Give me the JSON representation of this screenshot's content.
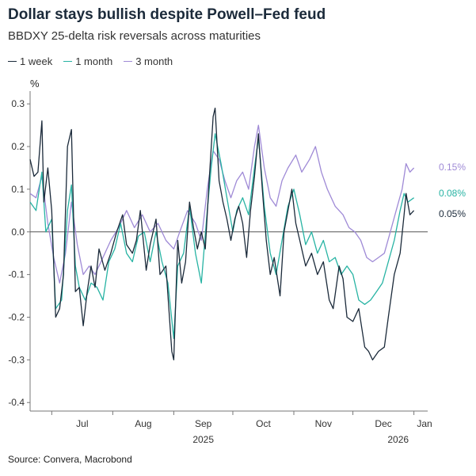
{
  "title": "Dollar stays bullish despite Powell–Fed feud",
  "subtitle": "BBDXY 25-delta risk reversals across maturities",
  "source": "Source: Convera, Macrobond",
  "colors": {
    "1 week": "#1b2a3a",
    "1 month": "#27b3a3",
    "3 month": "#9f8ad6",
    "zero_line": "#555555"
  },
  "chart_data": {
    "type": "line",
    "ylabel": "%",
    "xlabel": "",
    "ylim": [
      -0.42,
      0.33
    ],
    "yticks": [
      "0.3",
      "0.2",
      "0.1",
      "0.0",
      "-0.1",
      "-0.2",
      "-0.3",
      "-0.4"
    ],
    "ytick_values": [
      0.3,
      0.2,
      0.1,
      0.0,
      -0.1,
      -0.2,
      -0.3,
      -0.4
    ],
    "x_range": [
      "2025-06-20",
      "2026-01-08"
    ],
    "month_ticks": [
      {
        "label": "Jul",
        "date": "2025-07-01"
      },
      {
        "label": "Aug",
        "date": "2025-08-01"
      },
      {
        "label": "Sep",
        "date": "2025-09-01"
      },
      {
        "label": "Oct",
        "date": "2025-10-01"
      },
      {
        "label": "Nov",
        "date": "2025-11-01"
      },
      {
        "label": "Dec",
        "date": "2025-12-01"
      },
      {
        "label": "Jan",
        "date": "2026-01-01"
      }
    ],
    "year_labels": [
      {
        "label": "2025",
        "date": "2025-09-16"
      },
      {
        "label": "2026",
        "date": "2025-12-24"
      }
    ],
    "grid": false,
    "legend": "top-left",
    "end_labels": [
      "0.15%",
      "0.08%",
      "0.05%"
    ],
    "series": [
      {
        "name": "1 week",
        "data": [
          [
            "2025-06-20",
            0.17
          ],
          [
            "2025-06-22",
            0.13
          ],
          [
            "2025-06-24",
            0.14
          ],
          [
            "2025-06-26",
            0.26
          ],
          [
            "2025-06-27",
            0.07
          ],
          [
            "2025-06-29",
            0.15
          ],
          [
            "2025-07-01",
            0.05
          ],
          [
            "2025-07-03",
            -0.2
          ],
          [
            "2025-07-05",
            -0.18
          ],
          [
            "2025-07-07",
            -0.1
          ],
          [
            "2025-07-09",
            0.2
          ],
          [
            "2025-07-11",
            0.24
          ],
          [
            "2025-07-13",
            -0.14
          ],
          [
            "2025-07-15",
            -0.13
          ],
          [
            "2025-07-17",
            -0.22
          ],
          [
            "2025-07-19",
            -0.14
          ],
          [
            "2025-07-21",
            -0.08
          ],
          [
            "2025-07-23",
            -0.13
          ],
          [
            "2025-07-25",
            -0.04
          ],
          [
            "2025-07-28",
            -0.09
          ],
          [
            "2025-07-31",
            -0.05
          ],
          [
            "2025-08-03",
            0.0
          ],
          [
            "2025-08-06",
            0.04
          ],
          [
            "2025-08-08",
            -0.03
          ],
          [
            "2025-08-11",
            -0.05
          ],
          [
            "2025-08-13",
            -0.02
          ],
          [
            "2025-08-15",
            0.05
          ],
          [
            "2025-08-18",
            -0.09
          ],
          [
            "2025-08-20",
            -0.03
          ],
          [
            "2025-08-23",
            0.03
          ],
          [
            "2025-08-25",
            -0.1
          ],
          [
            "2025-08-28",
            -0.08
          ],
          [
            "2025-08-31",
            -0.28
          ],
          [
            "2025-09-01",
            -0.3
          ],
          [
            "2025-09-03",
            -0.02
          ],
          [
            "2025-09-05",
            -0.12
          ],
          [
            "2025-09-07",
            -0.07
          ],
          [
            "2025-09-09",
            0.07
          ],
          [
            "2025-09-11",
            0.01
          ],
          [
            "2025-09-13",
            -0.04
          ],
          [
            "2025-09-15",
            0.0
          ],
          [
            "2025-09-17",
            -0.04
          ],
          [
            "2025-09-19",
            0.12
          ],
          [
            "2025-09-21",
            0.27
          ],
          [
            "2025-09-22",
            0.29
          ],
          [
            "2025-09-24",
            0.12
          ],
          [
            "2025-09-26",
            0.07
          ],
          [
            "2025-09-28",
            0.03
          ],
          [
            "2025-09-30",
            -0.02
          ],
          [
            "2025-10-02",
            0.03
          ],
          [
            "2025-10-04",
            0.06
          ],
          [
            "2025-10-06",
            0.02
          ],
          [
            "2025-10-08",
            -0.06
          ],
          [
            "2025-10-10",
            0.05
          ],
          [
            "2025-10-12",
            0.13
          ],
          [
            "2025-10-14",
            0.23
          ],
          [
            "2025-10-16",
            0.1
          ],
          [
            "2025-10-18",
            -0.02
          ],
          [
            "2025-10-20",
            -0.1
          ],
          [
            "2025-10-22",
            -0.06
          ],
          [
            "2025-10-25",
            -0.15
          ],
          [
            "2025-10-27",
            0.0
          ],
          [
            "2025-10-29",
            0.05
          ],
          [
            "2025-10-31",
            0.1
          ],
          [
            "2025-11-02",
            0.02
          ],
          [
            "2025-11-04",
            -0.02
          ],
          [
            "2025-11-07",
            -0.08
          ],
          [
            "2025-11-10",
            -0.05
          ],
          [
            "2025-11-13",
            -0.1
          ],
          [
            "2025-11-16",
            -0.07
          ],
          [
            "2025-11-19",
            -0.16
          ],
          [
            "2025-11-21",
            -0.18
          ],
          [
            "2025-11-24",
            -0.08
          ],
          [
            "2025-11-26",
            -0.11
          ],
          [
            "2025-11-28",
            -0.2
          ],
          [
            "2025-12-01",
            -0.21
          ],
          [
            "2025-12-04",
            -0.18
          ],
          [
            "2025-12-07",
            -0.27
          ],
          [
            "2025-12-09",
            -0.28
          ],
          [
            "2025-12-11",
            -0.3
          ],
          [
            "2025-12-14",
            -0.28
          ],
          [
            "2025-12-17",
            -0.27
          ],
          [
            "2025-12-19",
            -0.2
          ],
          [
            "2025-12-22",
            -0.1
          ],
          [
            "2025-12-25",
            -0.05
          ],
          [
            "2025-12-27",
            0.04
          ],
          [
            "2025-12-28",
            0.09
          ],
          [
            "2025-12-30",
            0.04
          ],
          [
            "2026-01-01",
            0.05
          ]
        ]
      },
      {
        "name": "1 month",
        "data": [
          [
            "2025-06-20",
            0.07
          ],
          [
            "2025-06-23",
            0.05
          ],
          [
            "2025-06-26",
            0.14
          ],
          [
            "2025-06-28",
            0.0
          ],
          [
            "2025-07-01",
            0.03
          ],
          [
            "2025-07-03",
            -0.18
          ],
          [
            "2025-07-06",
            -0.16
          ],
          [
            "2025-07-09",
            0.05
          ],
          [
            "2025-07-11",
            0.11
          ],
          [
            "2025-07-13",
            -0.08
          ],
          [
            "2025-07-15",
            -0.13
          ],
          [
            "2025-07-18",
            -0.16
          ],
          [
            "2025-07-21",
            -0.12
          ],
          [
            "2025-07-24",
            -0.13
          ],
          [
            "2025-07-27",
            -0.16
          ],
          [
            "2025-07-30",
            -0.07
          ],
          [
            "2025-08-02",
            -0.04
          ],
          [
            "2025-08-05",
            0.02
          ],
          [
            "2025-08-08",
            -0.05
          ],
          [
            "2025-08-11",
            -0.07
          ],
          [
            "2025-08-14",
            -0.01
          ],
          [
            "2025-08-17",
            0.0
          ],
          [
            "2025-08-20",
            -0.07
          ],
          [
            "2025-08-23",
            0.0
          ],
          [
            "2025-08-26",
            -0.07
          ],
          [
            "2025-08-29",
            -0.12
          ],
          [
            "2025-09-01",
            -0.25
          ],
          [
            "2025-09-03",
            -0.08
          ],
          [
            "2025-09-06",
            -0.05
          ],
          [
            "2025-09-09",
            0.06
          ],
          [
            "2025-09-12",
            -0.05
          ],
          [
            "2025-09-15",
            -0.12
          ],
          [
            "2025-09-18",
            0.05
          ],
          [
            "2025-09-20",
            0.15
          ],
          [
            "2025-09-22",
            0.23
          ],
          [
            "2025-09-25",
            0.16
          ],
          [
            "2025-09-28",
            0.08
          ],
          [
            "2025-10-01",
            0.0
          ],
          [
            "2025-10-03",
            0.05
          ],
          [
            "2025-10-06",
            0.08
          ],
          [
            "2025-10-09",
            0.04
          ],
          [
            "2025-10-12",
            0.15
          ],
          [
            "2025-10-14",
            0.22
          ],
          [
            "2025-10-17",
            0.06
          ],
          [
            "2025-10-20",
            -0.05
          ],
          [
            "2025-10-23",
            -0.1
          ],
          [
            "2025-10-26",
            -0.02
          ],
          [
            "2025-10-29",
            0.06
          ],
          [
            "2025-11-01",
            0.1
          ],
          [
            "2025-11-04",
            0.04
          ],
          [
            "2025-11-07",
            -0.03
          ],
          [
            "2025-11-10",
            0.0
          ],
          [
            "2025-11-13",
            -0.05
          ],
          [
            "2025-11-16",
            -0.02
          ],
          [
            "2025-11-19",
            -0.07
          ],
          [
            "2025-11-22",
            -0.06
          ],
          [
            "2025-11-25",
            -0.1
          ],
          [
            "2025-11-28",
            -0.08
          ],
          [
            "2025-12-01",
            -0.1
          ],
          [
            "2025-12-04",
            -0.16
          ],
          [
            "2025-12-07",
            -0.17
          ],
          [
            "2025-12-10",
            -0.16
          ],
          [
            "2025-12-13",
            -0.14
          ],
          [
            "2025-12-16",
            -0.12
          ],
          [
            "2025-12-19",
            -0.07
          ],
          [
            "2025-12-22",
            -0.02
          ],
          [
            "2025-12-25",
            0.05
          ],
          [
            "2025-12-27",
            0.09
          ],
          [
            "2025-12-29",
            0.07
          ],
          [
            "2026-01-01",
            0.08
          ]
        ]
      },
      {
        "name": "3 month",
        "data": [
          [
            "2025-06-20",
            0.09
          ],
          [
            "2025-06-23",
            0.08
          ],
          [
            "2025-06-26",
            0.13
          ],
          [
            "2025-06-29",
            0.02
          ],
          [
            "2025-07-02",
            -0.06
          ],
          [
            "2025-07-05",
            -0.12
          ],
          [
            "2025-07-08",
            -0.05
          ],
          [
            "2025-07-11",
            0.07
          ],
          [
            "2025-07-14",
            -0.03
          ],
          [
            "2025-07-17",
            -0.1
          ],
          [
            "2025-07-20",
            -0.08
          ],
          [
            "2025-07-23",
            -0.1
          ],
          [
            "2025-07-27",
            -0.06
          ],
          [
            "2025-07-31",
            -0.02
          ],
          [
            "2025-08-04",
            0.01
          ],
          [
            "2025-08-08",
            0.05
          ],
          [
            "2025-08-12",
            0.01
          ],
          [
            "2025-08-16",
            0.04
          ],
          [
            "2025-08-20",
            0.0
          ],
          [
            "2025-08-24",
            0.02
          ],
          [
            "2025-08-28",
            -0.02
          ],
          [
            "2025-09-01",
            -0.04
          ],
          [
            "2025-09-04",
            0.0
          ],
          [
            "2025-09-08",
            0.05
          ],
          [
            "2025-09-12",
            0.02
          ],
          [
            "2025-09-15",
            -0.02
          ],
          [
            "2025-09-18",
            0.1
          ],
          [
            "2025-09-21",
            0.19
          ],
          [
            "2025-09-24",
            0.17
          ],
          [
            "2025-09-27",
            0.12
          ],
          [
            "2025-09-30",
            0.08
          ],
          [
            "2025-10-03",
            0.12
          ],
          [
            "2025-10-06",
            0.14
          ],
          [
            "2025-10-09",
            0.1
          ],
          [
            "2025-10-12",
            0.2
          ],
          [
            "2025-10-14",
            0.25
          ],
          [
            "2025-10-17",
            0.15
          ],
          [
            "2025-10-20",
            0.08
          ],
          [
            "2025-10-23",
            0.06
          ],
          [
            "2025-10-26",
            0.12
          ],
          [
            "2025-10-29",
            0.15
          ],
          [
            "2025-11-02",
            0.18
          ],
          [
            "2025-11-05",
            0.14
          ],
          [
            "2025-11-09",
            0.17
          ],
          [
            "2025-11-12",
            0.2
          ],
          [
            "2025-11-15",
            0.14
          ],
          [
            "2025-11-18",
            0.1
          ],
          [
            "2025-11-22",
            0.06
          ],
          [
            "2025-11-26",
            0.04
          ],
          [
            "2025-11-29",
            0.01
          ],
          [
            "2025-12-02",
            0.0
          ],
          [
            "2025-12-05",
            -0.02
          ],
          [
            "2025-12-08",
            -0.06
          ],
          [
            "2025-12-11",
            -0.07
          ],
          [
            "2025-12-14",
            -0.06
          ],
          [
            "2025-12-17",
            -0.05
          ],
          [
            "2025-12-20",
            0.0
          ],
          [
            "2025-12-23",
            0.05
          ],
          [
            "2025-12-26",
            0.1
          ],
          [
            "2025-12-28",
            0.16
          ],
          [
            "2025-12-30",
            0.14
          ],
          [
            "2026-01-01",
            0.15
          ]
        ]
      }
    ]
  }
}
